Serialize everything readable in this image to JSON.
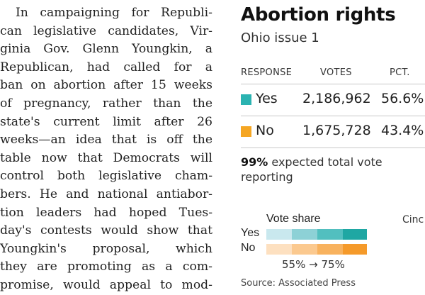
{
  "article": {
    "lines": [
      "In campaigning for Republi-",
      "can legislative candidates, Vir-",
      "ginia Gov. Glenn Youngkin, a",
      "Republican, had called for a",
      "ban on abortion after 15 weeks",
      "of pregnancy, rather than the",
      "state's current limit after 26",
      "weeks—an idea that is off the",
      "table now that Democrats will",
      "control both legislative cham-",
      "bers. He and national antiabor-",
      "tion leaders had hoped Tues-",
      "day's contests would show that",
      "Youngkin's proposal, which",
      "they are promoting as a com-",
      "promise, would appeal to mod-"
    ]
  },
  "results": {
    "title": "Abortion rights",
    "subtitle": "Ohio issue 1",
    "headers": {
      "response": "RESPONSE",
      "votes": "VOTES",
      "pct": "PCT."
    },
    "rows": [
      {
        "response": "Yes",
        "votes": "2,186,962",
        "pct": "56.6%",
        "color": "#2bb3b1"
      },
      {
        "response": "No",
        "votes": "1,675,728",
        "pct": "43.4%",
        "color": "#f5a623"
      }
    ],
    "reporting_pct": "99%",
    "reporting_text": " expected total vote reporting"
  },
  "legend": {
    "title": "Vote share",
    "yes_label": "Yes",
    "no_label": "No",
    "yes_colors": [
      "#c9e8ee",
      "#8dd1d6",
      "#52bfbf",
      "#1fa7a3"
    ],
    "no_colors": [
      "#fde0c0",
      "#fbc98f",
      "#f8b25e",
      "#f59a2a"
    ],
    "range_low": "55%",
    "arrow": "→",
    "range_high": "75%"
  },
  "source": "Source: Associated Press",
  "map_label": "Cinc"
}
